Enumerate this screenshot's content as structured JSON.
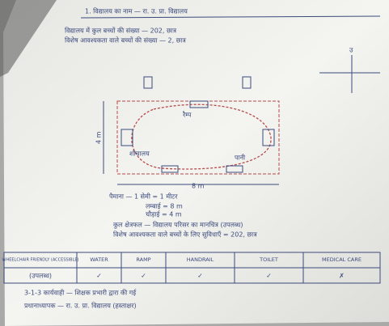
{
  "header": {
    "lines": [
      "1. विद्यालय का नाम — रा. उ. प्रा. विद्यालय",
      "विद्यालय में कुल बच्चों की संख्या — 202, छात्र",
      "विशेष आवश्यकता वाले बच्चों की संख्या — 2, छात्र"
    ]
  },
  "compass": {
    "north": "उ"
  },
  "diagram": {
    "length": "8 m",
    "width": "4 m",
    "labels": [
      "रैम्प",
      "शौचालय",
      "पानी"
    ]
  },
  "notes": [
    "पैमाना — 1 सेमी = 1 मीटर",
    "लम्बाई = 8 m",
    "चौड़ाई = 4 m",
    "कुल क्षेत्रफल — विद्यालय परिसर का मानचित्र (उपलब्ध)",
    "विशेष आवश्यकता वाले बच्चों के लिए सुविधाएँ = 202, छात्र"
  ],
  "table": {
    "headers": [
      "WHEELCHAIR FRIENDLY (ACCESSIBLE)",
      "WATER",
      "RAMP",
      "HANDRAIL",
      "TOILET",
      "MEDICAL CARE"
    ],
    "rows": [
      [
        "(उपलब्ध)",
        "✓",
        "✓",
        "✓",
        "✓",
        "✗"
      ]
    ]
  },
  "footer": {
    "lines": [
      "3-1-3 कार्यवाही — शिक्षक प्रभारी द्वारा की गई",
      "प्रधानाध्यापक — रा. उ. प्रा. विद्यालय (हस्ताक्षर)"
    ]
  }
}
